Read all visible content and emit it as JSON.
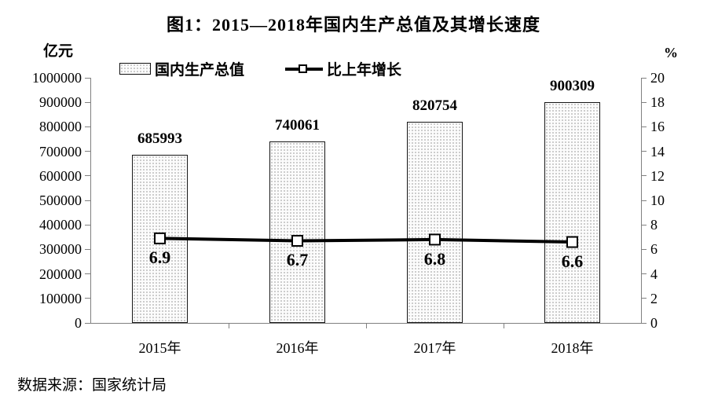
{
  "title": "图1：2015—2018年国内生产总值及其增长速度",
  "source_note": "数据来源：国家统计局",
  "colors": {
    "background": "#ffffff",
    "text": "#000000",
    "axis_line": "#808080",
    "bar_fill": "#fcfcfc",
    "bar_dot": "#c4c4c4",
    "bar_border": "#161616",
    "line": "#000000",
    "marker_fill": "#ffffff"
  },
  "chart_data": {
    "type": "bar",
    "title": "图1：2015—2018年国内生产总值及其增长速度",
    "categories": [
      "2015年",
      "2016年",
      "2017年",
      "2018年"
    ],
    "series": [
      {
        "name": "国内生产总值",
        "type": "bar",
        "axis": "left",
        "unit": "亿元",
        "values": [
          685993,
          740061,
          820754,
          900309
        ]
      },
      {
        "name": "比上年增长",
        "type": "line",
        "axis": "right",
        "unit": "%",
        "values": [
          6.9,
          6.7,
          6.8,
          6.6
        ]
      }
    ],
    "left_axis": {
      "unit": "亿元",
      "min": 0,
      "max": 1000000,
      "step": 100000,
      "ticks": [
        0,
        100000,
        200000,
        300000,
        400000,
        500000,
        600000,
        700000,
        800000,
        900000,
        1000000
      ]
    },
    "right_axis": {
      "unit": "%",
      "min": 0,
      "max": 20,
      "step": 2,
      "ticks": [
        0,
        2,
        4,
        6,
        8,
        10,
        12,
        14,
        16,
        18,
        20
      ]
    },
    "grid": false,
    "legend_position": "top"
  }
}
